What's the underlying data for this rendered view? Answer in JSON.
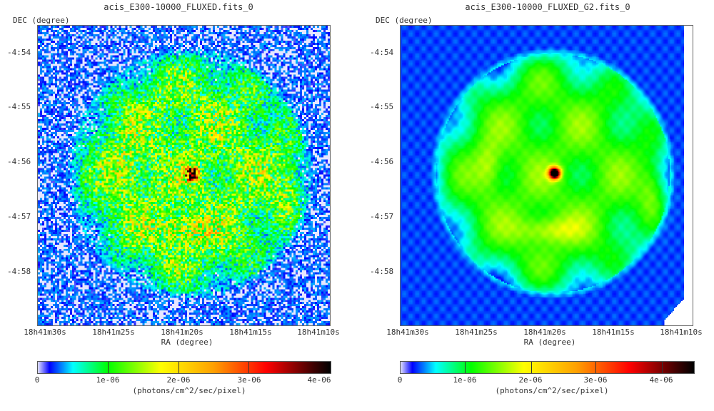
{
  "chart_data": [
    {
      "type": "heatmap",
      "title": "acis_E300-10000_FLUXED.fits_0",
      "xlabel": "RA (degree)",
      "ylabel": "DEC (degree)",
      "x_ticks": [
        "18h41m30s",
        "18h41m25s",
        "18h41m20s",
        "18h41m15s",
        "18h41m10s"
      ],
      "y_ticks": [
        "-4:54",
        "-4:55",
        "-4:56",
        "-4:57",
        "-4:58"
      ],
      "colorbar": {
        "ticks": [
          "0",
          "1e-06",
          "2e-06",
          "3e-06",
          "4e-06"
        ],
        "range": [
          0,
          4.2e-06
        ],
        "label": "(photons/cm^2/sec/pixel)"
      },
      "smoothed": false
    },
    {
      "type": "heatmap",
      "title": "acis_E300-10000_FLUXED_G2.fits_0",
      "xlabel": "RA (degree)",
      "ylabel": "DEC (degree)",
      "x_ticks": [
        "18h41m30s",
        "18h41m25s",
        "18h41m20s",
        "18h41m15s",
        "18h41m10s"
      ],
      "y_ticks": [
        "-4:54",
        "-4:55",
        "-4:56",
        "-4:57",
        "-4:58"
      ],
      "colorbar": {
        "ticks": [
          "0",
          "1e-06",
          "2e-06",
          "3e-06",
          "4e-06"
        ],
        "range": [
          0,
          4.5e-06
        ],
        "label": "(photons/cm^2/sec/pixel)"
      },
      "smoothed": true
    }
  ]
}
